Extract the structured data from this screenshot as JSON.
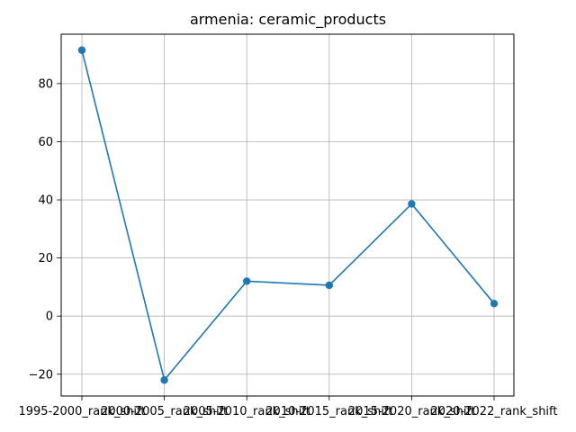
{
  "chart_data": {
    "type": "line",
    "title": "armenia: ceramic_products",
    "xlabel": "",
    "ylabel": "",
    "categories": [
      "1995-2000_rank_shift",
      "2000-2005_rank_shift",
      "2005-2010_rank_shift",
      "2010-2015_rank_shift",
      "2015-2020_rank_shift",
      "2020-2022_rank_shift"
    ],
    "series": [
      {
        "values": [
          91.5,
          -22,
          12,
          10.6,
          38.6,
          4.3
        ],
        "color": "#1f77b4",
        "marker": "circle"
      }
    ],
    "ylim": [
      -27.5,
      97
    ],
    "yticks": [
      -20,
      0,
      20,
      40,
      60,
      80
    ],
    "grid": true,
    "legend": "none"
  }
}
